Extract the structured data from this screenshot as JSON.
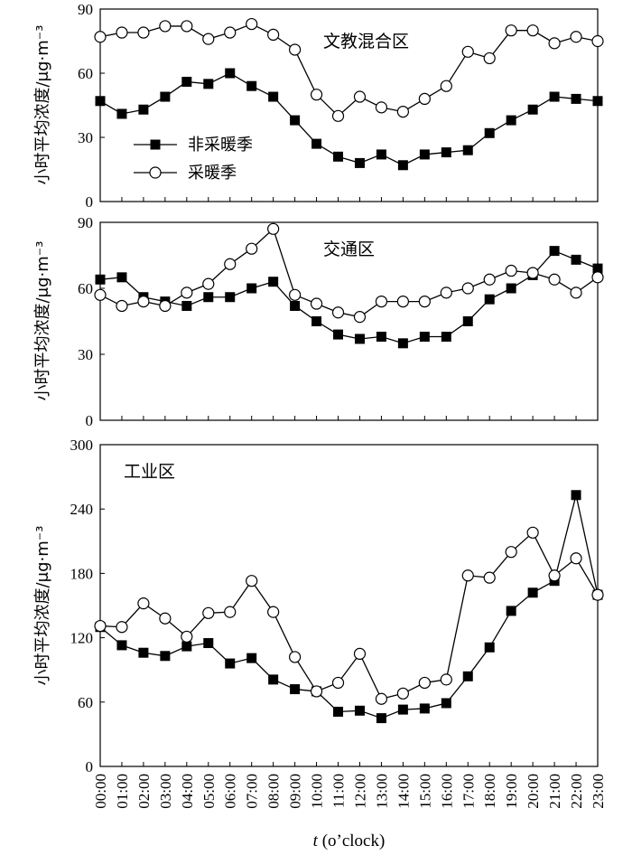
{
  "chart_data": [
    {
      "type": "line",
      "title": "文教混合区",
      "ylabel": "小时平均浓度/μg·m⁻³",
      "ylim": [
        0,
        90
      ],
      "yticks": [
        0,
        30,
        60,
        90
      ],
      "legend_placement": "left",
      "categories": [
        "00:00",
        "01:00",
        "02:00",
        "03:00",
        "04:00",
        "05:00",
        "06:00",
        "07:00",
        "08:00",
        "09:00",
        "10:00",
        "11:00",
        "12:00",
        "13:00",
        "14:00",
        "15:00",
        "16:00",
        "17:00",
        "18:00",
        "19:00",
        "20:00",
        "21:00",
        "22:00",
        "23:00"
      ],
      "series": [
        {
          "name": "非采暖季",
          "marker": "filled-square",
          "values": [
            47,
            41,
            43,
            49,
            56,
            55,
            60,
            54,
            49,
            38,
            27,
            21,
            18,
            22,
            17,
            22,
            23,
            24,
            32,
            38,
            43,
            49,
            48,
            47
          ]
        },
        {
          "name": "采暖季",
          "marker": "open-circle",
          "values": [
            77,
            79,
            79,
            82,
            82,
            76,
            79,
            83,
            78,
            71,
            50,
            40,
            49,
            44,
            42,
            48,
            54,
            70,
            67,
            80,
            80,
            74,
            77,
            75
          ]
        }
      ]
    },
    {
      "type": "line",
      "title": "交通区",
      "ylabel": "小时平均浓度/μg·m⁻³",
      "ylim": [
        0,
        90
      ],
      "yticks": [
        0,
        30,
        60,
        90
      ],
      "categories": [
        "00:00",
        "01:00",
        "02:00",
        "03:00",
        "04:00",
        "05:00",
        "06:00",
        "07:00",
        "08:00",
        "09:00",
        "10:00",
        "11:00",
        "12:00",
        "13:00",
        "14:00",
        "15:00",
        "16:00",
        "17:00",
        "18:00",
        "19:00",
        "20:00",
        "21:00",
        "22:00",
        "23:00"
      ],
      "series": [
        {
          "name": "非采暖季",
          "marker": "filled-square",
          "values": [
            64,
            65,
            56,
            54,
            52,
            56,
            56,
            60,
            63,
            52,
            45,
            39,
            37,
            38,
            35,
            38,
            38,
            45,
            55,
            60,
            66,
            77,
            73,
            69
          ]
        },
        {
          "name": "采暖季",
          "marker": "open-circle",
          "values": [
            57,
            52,
            54,
            52,
            58,
            62,
            71,
            78,
            87,
            57,
            53,
            49,
            47,
            54,
            54,
            54,
            58,
            60,
            64,
            68,
            67,
            64,
            58,
            65
          ]
        }
      ]
    },
    {
      "type": "line",
      "title": "工业区",
      "ylabel": "小时平均浓度/μg·m⁻³",
      "ylim": [
        0,
        300
      ],
      "yticks": [
        0,
        60,
        120,
        180,
        240,
        300
      ],
      "xlabel": "t (o’clock)",
      "categories": [
        "00:00",
        "01:00",
        "02:00",
        "03:00",
        "04:00",
        "05:00",
        "06:00",
        "07:00",
        "08:00",
        "09:00",
        "10:00",
        "11:00",
        "12:00",
        "13:00",
        "14:00",
        "15:00",
        "16:00",
        "17:00",
        "18:00",
        "19:00",
        "20:00",
        "21:00",
        "22:00",
        "23:00"
      ],
      "series": [
        {
          "name": "非采暖季",
          "marker": "filled-square",
          "values": [
            130,
            113,
            106,
            103,
            112,
            115,
            96,
            101,
            81,
            72,
            70,
            51,
            52,
            45,
            53,
            54,
            59,
            84,
            111,
            145,
            162,
            173,
            253,
            160
          ]
        },
        {
          "name": "采暖季",
          "marker": "open-circle",
          "values": [
            131,
            130,
            152,
            138,
            121,
            143,
            144,
            173,
            144,
            102,
            70,
            78,
            105,
            63,
            68,
            78,
            81,
            178,
            176,
            200,
            218,
            178,
            194,
            160
          ]
        }
      ]
    }
  ]
}
